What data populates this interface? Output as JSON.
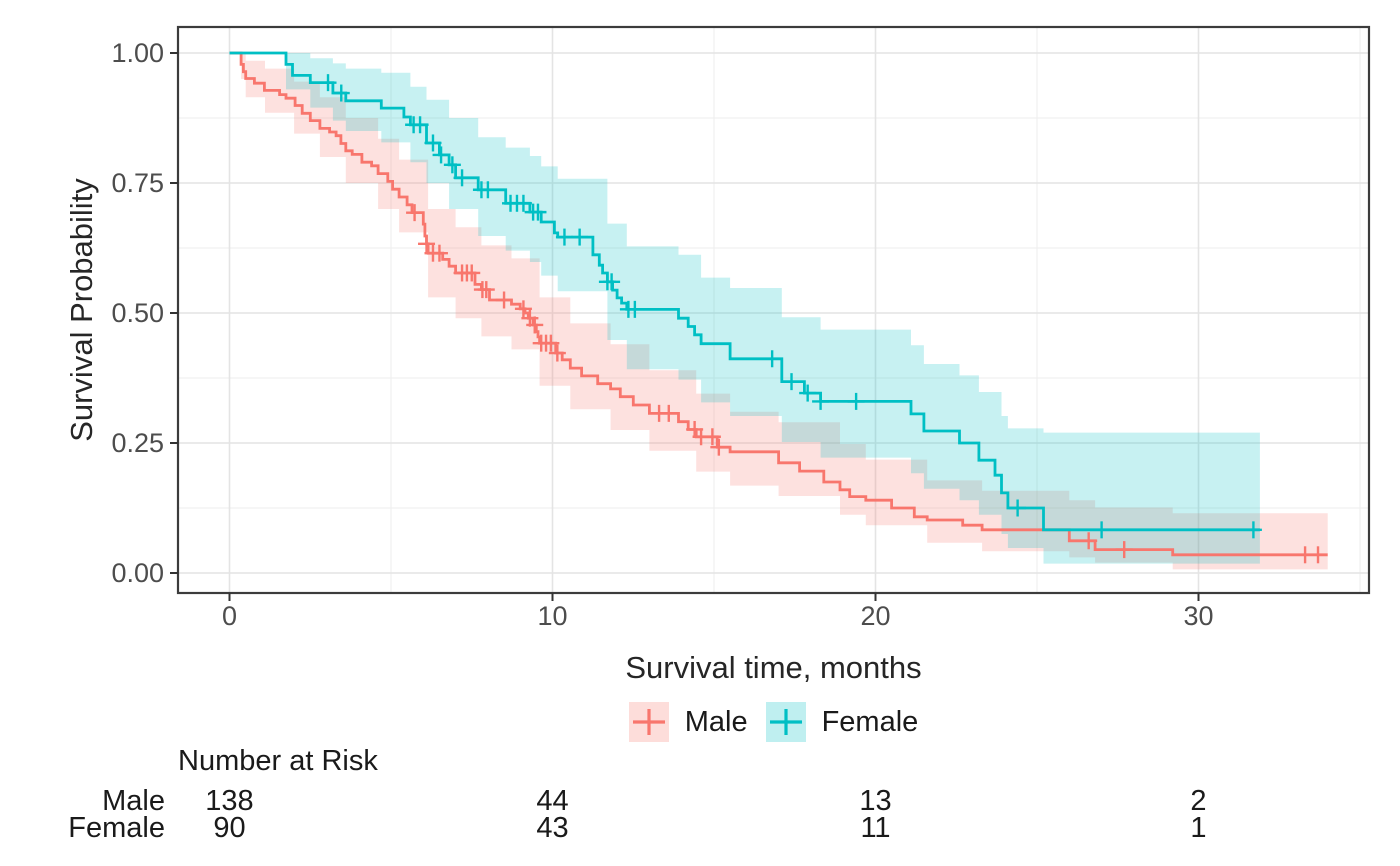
{
  "axes": {
    "x_label": "Survival time, months",
    "y_label": "Survival Probability",
    "x_ticks": [
      {
        "value": 0,
        "label": "0"
      },
      {
        "value": 10,
        "label": "10"
      },
      {
        "value": 20,
        "label": "20"
      },
      {
        "value": 30,
        "label": "30"
      }
    ],
    "y_ticks": [
      {
        "value": 0.0,
        "label": "0.00"
      },
      {
        "value": 0.25,
        "label": "0.25"
      },
      {
        "value": 0.5,
        "label": "0.50"
      },
      {
        "value": 0.75,
        "label": "0.75"
      },
      {
        "value": 1.0,
        "label": "1.00"
      }
    ],
    "x_minor": [
      5,
      15,
      25,
      35
    ],
    "y_minor": [
      0.125,
      0.375,
      0.625,
      0.875
    ],
    "xlim": [
      -1.6,
      35.3
    ],
    "ylim": [
      -0.04,
      1.05
    ],
    "grid": "on"
  },
  "styles": {
    "background": "#FFFFFF",
    "grid_major": "#E4E4E4",
    "grid_minor": "#F0F0F0",
    "panel_border": "#3C3C3C",
    "tick_mark_color": "#333333",
    "tick_label_color": "#4D4D4D",
    "title_color": "#262626",
    "band_opacity": 0.22,
    "male_color": "#F8766D",
    "female_color": "#00BFC4"
  },
  "legend": {
    "items": [
      {
        "label": "Male",
        "color": "#F8766D"
      },
      {
        "label": "Female",
        "color": "#00BFC4"
      }
    ]
  },
  "risk_table": {
    "title": "Number at Risk",
    "times": [
      0,
      10,
      20,
      30
    ],
    "rows": [
      {
        "label": "Male",
        "counts": [
          "138",
          "44",
          "13",
          "2"
        ]
      },
      {
        "label": "Female",
        "counts": [
          "90",
          "43",
          "11",
          "1"
        ]
      }
    ]
  },
  "chart_data": {
    "type": "line",
    "subtype": "kaplan-meier-step",
    "title": "",
    "xlabel": "Survival time, months",
    "ylabel": "Survival Probability",
    "xlim": [
      -1.6,
      35.3
    ],
    "ylim": [
      -0.04,
      1.05
    ],
    "legend_position": "bottom",
    "series": [
      {
        "name": "Male",
        "color": "#F8766D",
        "n_at_risk": [
          138,
          44,
          13,
          2
        ],
        "end_time": 34.0,
        "steps": [
          [
            0,
            1.0
          ],
          [
            0.36,
            0.978
          ],
          [
            0.43,
            0.964
          ],
          [
            0.5,
            0.951
          ],
          [
            0.77,
            0.942
          ],
          [
            1.08,
            0.928
          ],
          [
            1.55,
            0.92
          ],
          [
            1.75,
            0.913
          ],
          [
            2.03,
            0.899
          ],
          [
            2.25,
            0.884
          ],
          [
            2.5,
            0.87
          ],
          [
            2.8,
            0.855
          ],
          [
            3.1,
            0.848
          ],
          [
            3.3,
            0.841
          ],
          [
            3.45,
            0.826
          ],
          [
            3.6,
            0.812
          ],
          [
            3.8,
            0.805
          ],
          [
            4.1,
            0.79
          ],
          [
            4.4,
            0.783
          ],
          [
            4.6,
            0.768
          ],
          [
            4.9,
            0.753
          ],
          [
            5.05,
            0.738
          ],
          [
            5.25,
            0.723
          ],
          [
            5.5,
            0.708
          ],
          [
            5.65,
            0.693
          ],
          [
            6.0,
            0.671
          ],
          [
            6.05,
            0.648
          ],
          [
            6.1,
            0.633
          ],
          [
            6.15,
            0.615
          ],
          [
            6.6,
            0.603
          ],
          [
            6.8,
            0.59
          ],
          [
            7.0,
            0.577
          ],
          [
            7.6,
            0.555
          ],
          [
            7.8,
            0.545
          ],
          [
            8.05,
            0.525
          ],
          [
            8.73,
            0.517
          ],
          [
            9.0,
            0.508
          ],
          [
            9.15,
            0.5
          ],
          [
            9.25,
            0.49
          ],
          [
            9.4,
            0.477
          ],
          [
            9.5,
            0.464
          ],
          [
            9.55,
            0.454
          ],
          [
            9.6,
            0.442
          ],
          [
            10.1,
            0.423
          ],
          [
            10.3,
            0.41
          ],
          [
            10.55,
            0.394
          ],
          [
            10.9,
            0.379
          ],
          [
            11.4,
            0.364
          ],
          [
            11.8,
            0.354
          ],
          [
            12.1,
            0.339
          ],
          [
            12.5,
            0.323
          ],
          [
            13.0,
            0.307
          ],
          [
            13.9,
            0.291
          ],
          [
            14.2,
            0.276
          ],
          [
            14.45,
            0.262
          ],
          [
            15.1,
            0.242
          ],
          [
            15.5,
            0.233
          ],
          [
            17.0,
            0.212
          ],
          [
            17.65,
            0.196
          ],
          [
            18.4,
            0.175
          ],
          [
            18.9,
            0.16
          ],
          [
            19.2,
            0.147
          ],
          [
            19.7,
            0.14
          ],
          [
            20.5,
            0.125
          ],
          [
            21.2,
            0.108
          ],
          [
            21.6,
            0.102
          ],
          [
            22.7,
            0.092
          ],
          [
            23.3,
            0.083
          ],
          [
            26.0,
            0.062
          ],
          [
            26.8,
            0.045
          ],
          [
            29.2,
            0.035
          ]
        ],
        "censor_times": [
          5.73,
          6.1,
          6.3,
          6.5,
          7.2,
          7.35,
          7.5,
          7.83,
          7.95,
          8.5,
          9.1,
          9.3,
          9.45,
          9.65,
          9.8,
          9.95,
          10.15,
          13.3,
          13.6,
          14.4,
          14.6,
          14.95,
          15.15,
          26.6,
          27.7,
          33.3,
          33.7
        ],
        "band": [
          [
            0.36,
            0.95,
            1.0
          ],
          [
            0.5,
            0.915,
            0.985
          ],
          [
            1.1,
            0.885,
            0.97
          ],
          [
            2.0,
            0.845,
            0.945
          ],
          [
            2.8,
            0.8,
            0.915
          ],
          [
            3.6,
            0.75,
            0.875
          ],
          [
            4.6,
            0.7,
            0.835
          ],
          [
            5.25,
            0.655,
            0.795
          ],
          [
            6.15,
            0.53,
            0.7
          ],
          [
            7.0,
            0.49,
            0.665
          ],
          [
            7.8,
            0.455,
            0.63
          ],
          [
            8.73,
            0.43,
            0.605
          ],
          [
            9.6,
            0.36,
            0.53
          ],
          [
            10.55,
            0.315,
            0.48
          ],
          [
            11.8,
            0.275,
            0.44
          ],
          [
            13.0,
            0.235,
            0.39
          ],
          [
            14.45,
            0.195,
            0.345
          ],
          [
            15.5,
            0.168,
            0.31
          ],
          [
            17.0,
            0.148,
            0.29
          ],
          [
            18.9,
            0.112,
            0.248
          ],
          [
            19.7,
            0.092,
            0.218
          ],
          [
            21.6,
            0.058,
            0.178
          ],
          [
            23.3,
            0.042,
            0.158
          ],
          [
            26.0,
            0.03,
            0.14
          ],
          [
            26.8,
            0.02,
            0.126
          ],
          [
            29.2,
            0.007,
            0.115
          ]
        ]
      },
      {
        "name": "Female",
        "color": "#00BFC4",
        "n_at_risk": [
          90,
          43,
          11,
          1
        ],
        "end_time": 31.9,
        "steps": [
          [
            0,
            1.0
          ],
          [
            1.75,
            0.978
          ],
          [
            1.95,
            0.957
          ],
          [
            2.5,
            0.943
          ],
          [
            3.2,
            0.923
          ],
          [
            3.6,
            0.908
          ],
          [
            4.7,
            0.894
          ],
          [
            5.4,
            0.877
          ],
          [
            5.6,
            0.862
          ],
          [
            6.1,
            0.827
          ],
          [
            6.5,
            0.804
          ],
          [
            6.8,
            0.785
          ],
          [
            7.0,
            0.76
          ],
          [
            7.7,
            0.737
          ],
          [
            8.55,
            0.711
          ],
          [
            9.3,
            0.694
          ],
          [
            9.65,
            0.675
          ],
          [
            10.06,
            0.654
          ],
          [
            10.16,
            0.646
          ],
          [
            11.25,
            0.612
          ],
          [
            11.45,
            0.592
          ],
          [
            11.55,
            0.577
          ],
          [
            11.7,
            0.56
          ],
          [
            11.86,
            0.544
          ],
          [
            12.0,
            0.529
          ],
          [
            12.14,
            0.519
          ],
          [
            12.3,
            0.507
          ],
          [
            13.9,
            0.49
          ],
          [
            14.2,
            0.474
          ],
          [
            14.4,
            0.458
          ],
          [
            14.6,
            0.441
          ],
          [
            15.5,
            0.412
          ],
          [
            17.1,
            0.368
          ],
          [
            17.8,
            0.346
          ],
          [
            18.3,
            0.33
          ],
          [
            21.1,
            0.306
          ],
          [
            21.5,
            0.273
          ],
          [
            22.6,
            0.25
          ],
          [
            23.2,
            0.217
          ],
          [
            23.7,
            0.188
          ],
          [
            23.9,
            0.154
          ],
          [
            24.1,
            0.125
          ],
          [
            25.2,
            0.083
          ]
        ],
        "censor_times": [
          3.05,
          3.46,
          5.7,
          5.9,
          6.3,
          6.55,
          6.9,
          7.2,
          7.8,
          8.0,
          8.7,
          8.9,
          9.1,
          9.4,
          9.55,
          10.37,
          10.84,
          11.7,
          11.83,
          12.35,
          12.55,
          16.8,
          17.4,
          17.9,
          18.3,
          19.4,
          24.4,
          27.0,
          31.7
        ],
        "band": [
          [
            1.75,
            0.93,
            1.0
          ],
          [
            2.5,
            0.895,
            0.99
          ],
          [
            3.2,
            0.87,
            0.98
          ],
          [
            3.6,
            0.85,
            0.97
          ],
          [
            4.7,
            0.828,
            0.962
          ],
          [
            5.6,
            0.79,
            0.935
          ],
          [
            6.1,
            0.75,
            0.91
          ],
          [
            6.8,
            0.7,
            0.875
          ],
          [
            7.7,
            0.648,
            0.838
          ],
          [
            8.55,
            0.62,
            0.818
          ],
          [
            9.3,
            0.598,
            0.802
          ],
          [
            9.65,
            0.572,
            0.782
          ],
          [
            10.16,
            0.542,
            0.758
          ],
          [
            11.7,
            0.448,
            0.672
          ],
          [
            12.3,
            0.392,
            0.628
          ],
          [
            13.9,
            0.372,
            0.612
          ],
          [
            14.6,
            0.328,
            0.568
          ],
          [
            15.5,
            0.302,
            0.548
          ],
          [
            17.1,
            0.252,
            0.492
          ],
          [
            18.3,
            0.222,
            0.468
          ],
          [
            21.1,
            0.192,
            0.438
          ],
          [
            21.5,
            0.162,
            0.402
          ],
          [
            22.6,
            0.14,
            0.38
          ],
          [
            23.2,
            0.112,
            0.348
          ],
          [
            23.9,
            0.075,
            0.302
          ],
          [
            24.1,
            0.048,
            0.278
          ],
          [
            25.2,
            0.018,
            0.27
          ]
        ]
      }
    ]
  }
}
